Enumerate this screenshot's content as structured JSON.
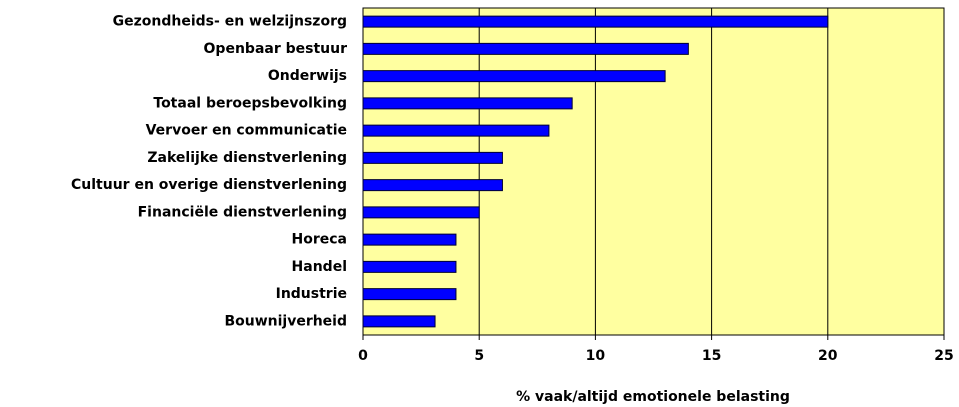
{
  "chart_data": {
    "type": "bar",
    "orientation": "horizontal",
    "x_label": "% vaak/altijd emotionele belasting",
    "categories": [
      "Gezondheids- en welzijnszorg",
      "Openbaar bestuur",
      "Onderwijs",
      "Totaal beroepsbevolking",
      "Vervoer en communicatie",
      "Zakelijke dienstverlening",
      "Cultuur en overige dienstverlening",
      "Financiële dienstverlening",
      "Horeca",
      "Handel",
      "Industrie",
      "Bouwnijverheid"
    ],
    "values": [
      20,
      14,
      13,
      9,
      8,
      6,
      6,
      5,
      4,
      4,
      4,
      3.1
    ],
    "color": "#0000ff",
    "background": "#ffffa0",
    "xlim": [
      0,
      25
    ],
    "xticks": [
      0,
      5,
      10,
      15,
      20,
      25
    ],
    "grid": true
  }
}
